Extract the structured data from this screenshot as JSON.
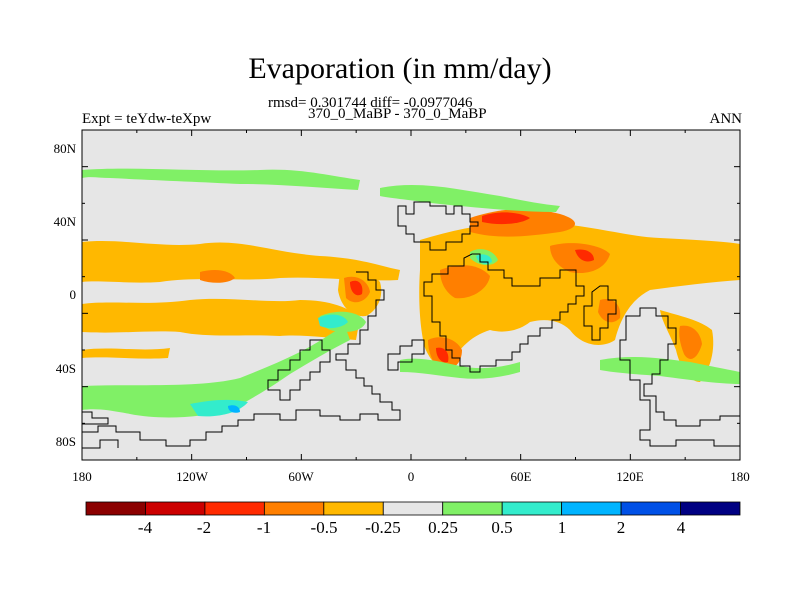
{
  "figure": {
    "title": "Evaporation (in mm/day)",
    "stats": "rmsd= 0.301744 diff= -0.0977046",
    "period": "370_0_MaBP - 370_0_MaBP",
    "experiment": "Expt = teYdw-teXpw",
    "season": "ANN"
  },
  "axes": {
    "lat_labels": [
      "80N",
      "40N",
      "0",
      "40S",
      "80S"
    ],
    "lon_labels": [
      "180",
      "120W",
      "60W",
      "0",
      "60E",
      "120E",
      "180"
    ]
  },
  "colorbar": {
    "labels": [
      "-4",
      "-2",
      "-1",
      "-0.5",
      "-0.25",
      "0.25",
      "0.5",
      "1",
      "2",
      "4"
    ],
    "colors": [
      "#8b0000",
      "#cc0000",
      "#ff2a00",
      "#ff7f00",
      "#ffb800",
      "#e6e6e6",
      "#80f066",
      "#33eccc",
      "#00b4ff",
      "#0050e6",
      "#000082"
    ]
  },
  "colors": {
    "background_field": "#e6e6e6",
    "coast": "#000000"
  }
}
